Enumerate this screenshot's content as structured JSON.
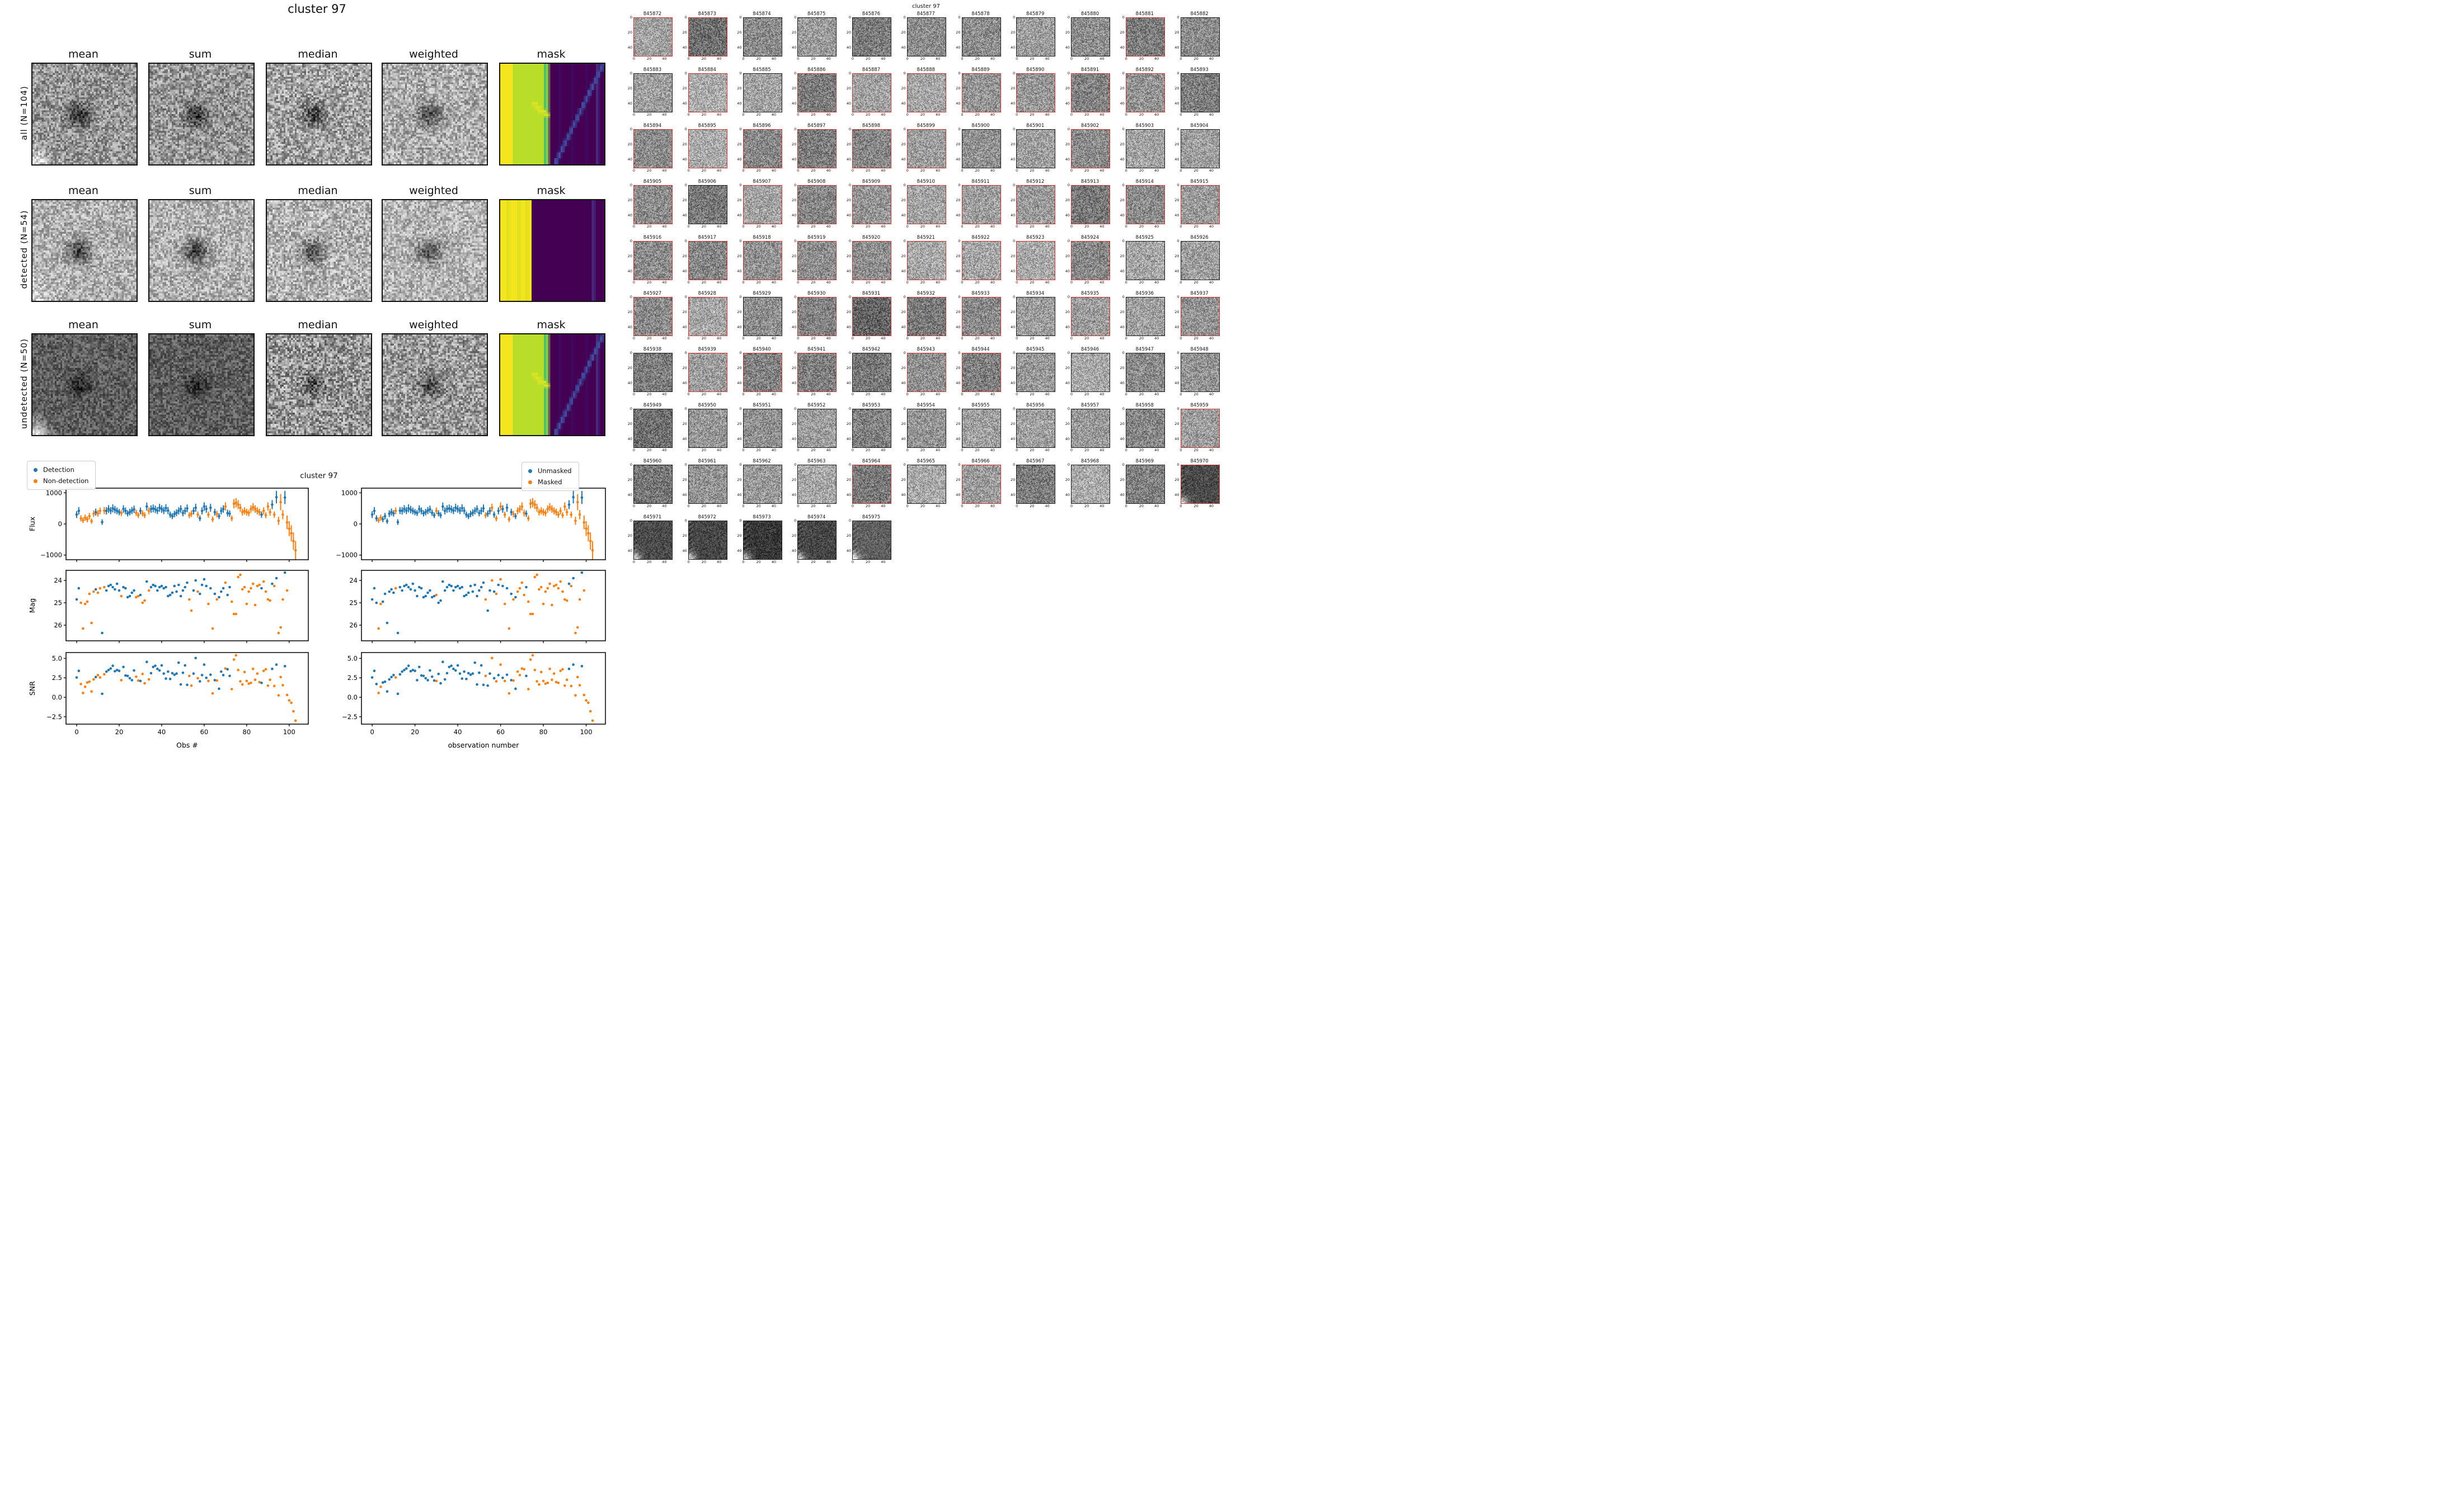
{
  "mosaic": {
    "title": "cluster 97",
    "columns": [
      "mean",
      "sum",
      "median",
      "weighted",
      "mask"
    ],
    "rows": [
      {
        "label": "all (N=104)",
        "mask_type": "wide"
      },
      {
        "label": "detected (N=54)",
        "mask_type": "narrow"
      },
      {
        "label": "undetected (N=50)",
        "mask_type": "wide"
      }
    ]
  },
  "plots": {
    "suptitle": "cluster 97",
    "ylabels": [
      "Flux",
      "Mag",
      "SNR"
    ],
    "left": {
      "legend": [
        "Detection",
        "Non-detection"
      ],
      "xlabel": "Obs #"
    },
    "right": {
      "legend": [
        "Unmasked",
        "Masked"
      ],
      "xlabel": "observation number"
    },
    "flux_ticks": [
      1000,
      0,
      -1000
    ],
    "mag_ticks": [
      24,
      25,
      26
    ],
    "snr_ticks": [
      5.0,
      2.5,
      0.0,
      -2.5
    ],
    "x_ticks": [
      0,
      20,
      40,
      60,
      80,
      100
    ]
  },
  "thumb_grid": {
    "suptitle": "cluster 97",
    "first_id": 845872,
    "count": 104,
    "cols": 11,
    "axis_ticks": [
      0,
      20,
      40
    ]
  },
  "colors": {
    "detection_blue": "#1f77b4",
    "nondetection_orange": "#ff7f0e",
    "mask_yellow": "#f4e61e",
    "mask_yellow2": "#e3e01c",
    "mask_yellowgreen": "#b8de29",
    "mask_green1": "#4ac16d",
    "mask_green2": "#7fd34f",
    "mask_purple": "#440154",
    "mask_purple2": "#472a7c",
    "mask_blue": "#3f4f9e",
    "thumb_border_red": "#c83232",
    "thumb_border_black": "#1a1a1a",
    "spine": "#111111"
  },
  "chart_data": {
    "type": "scatter",
    "description": "104 observations of cluster 97; same data plotted in two columns: left colored by Detection/Non-detection, right colored by Unmasked/Masked. Rows: Flux (with error bars), Mag, SNR vs observation number 0-103.",
    "x_range": [
      0,
      103
    ],
    "panels": [
      {
        "name": "Flux",
        "ylim": [
          -1150,
          1150
        ],
        "ticks": [
          1000,
          0,
          -1000
        ],
        "errorbars": true
      },
      {
        "name": "Mag",
        "ylim": [
          23.55,
          26.7
        ],
        "ticks": [
          24,
          25,
          26
        ],
        "errorbars": false
      },
      {
        "name": "SNR",
        "ylim": [
          -3.45,
          5.75
        ],
        "ticks": [
          5.0,
          2.5,
          0.0,
          -2.5
        ],
        "errorbars": false
      }
    ],
    "observations": {
      "first_id": 845872,
      "flux": [
        300,
        420,
        180,
        120,
        200,
        150,
        250,
        90,
        330,
        380,
        340,
        420,
        60,
        430,
        420,
        480,
        430,
        500,
        460,
        420,
        380,
        350,
        480,
        420,
        340,
        380,
        430,
        470,
        360,
        280,
        420,
        340,
        280,
        560,
        420,
        480,
        500,
        470,
        430,
        520,
        480,
        430,
        510,
        430,
        300,
        250,
        320,
        360,
        420,
        480,
        350,
        420,
        500,
        280,
        330,
        420,
        520,
        300,
        180,
        420,
        560,
        480,
        300,
        520,
        150,
        380,
        320,
        250,
        420,
        480,
        560,
        350,
        330,
        180,
        650,
        680,
        620,
        520,
        380,
        420,
        380,
        350,
        480,
        540,
        480,
        420,
        380,
        300,
        420,
        280,
        560,
        380,
        620,
        300,
        860,
        100,
        700,
        300,
        850,
        50,
        -150,
        -300,
        -550,
        -850
      ],
      "flux_err": [
        110,
        120,
        100,
        90,
        100,
        95,
        105,
        85,
        110,
        115,
        105,
        110,
        90,
        115,
        120,
        125,
        115,
        130,
        120,
        110,
        100,
        95,
        120,
        110,
        100,
        105,
        115,
        120,
        100,
        90,
        110,
        100,
        95,
        130,
        115,
        120,
        125,
        120,
        115,
        130,
        120,
        115,
        125,
        115,
        100,
        95,
        105,
        110,
        115,
        120,
        105,
        115,
        125,
        95,
        105,
        115,
        130,
        100,
        90,
        115,
        135,
        120,
        100,
        130,
        90,
        110,
        105,
        95,
        115,
        120,
        135,
        110,
        105,
        90,
        150,
        150,
        145,
        130,
        110,
        115,
        110,
        105,
        120,
        130,
        120,
        115,
        110,
        100,
        115,
        95,
        135,
        115,
        145,
        100,
        200,
        130,
        260,
        150,
        210,
        220,
        240,
        260,
        280,
        300
      ],
      "mag": [
        24.85,
        24.35,
        25.0,
        26.15,
        25.05,
        24.95,
        24.6,
        25.9,
        24.5,
        24.4,
        24.55,
        24.35,
        26.35,
        24.3,
        24.45,
        24.25,
        24.2,
        24.3,
        24.4,
        24.15,
        24.45,
        24.7,
        24.3,
        24.35,
        24.75,
        24.7,
        24.55,
        24.45,
        24.75,
        24.7,
        24.65,
        25.0,
        24.9,
        24.05,
        24.45,
        24.3,
        24.2,
        24.25,
        24.45,
        24.3,
        24.25,
        24.35,
        24.3,
        24.7,
        24.65,
        24.55,
        24.25,
        24.5,
        24.2,
        24.7,
        24.45,
        24.3,
        24.1,
        24.85,
        25.35,
        24.45,
        24.0,
        24.5,
        24.6,
        24.2,
        23.95,
        24.25,
        25.05,
        24.35,
        26.15,
        24.6,
        24.85,
        24.75,
        24.5,
        24.35,
        24.1,
        24.65,
        24.3,
        24.95,
        25.5,
        25.5,
        23.85,
        23.75,
        24.4,
        24.3,
        25.05,
        24.5,
        24.35,
        24.15,
        25.1,
        24.25,
        24.2,
        24.35,
        24.05,
        24.5,
        24.85,
        24.9,
        24.15,
        24.25,
        23.9,
        26.35,
        26.1,
        24.85,
        23.65,
        24.45,
        null,
        null,
        null,
        null
      ],
      "snr": [
        2.55,
        3.4,
        1.7,
        0.55,
        1.35,
        1.9,
        2.0,
        0.75,
        2.3,
        2.6,
        2.85,
        2.55,
        0.45,
        2.95,
        3.3,
        3.5,
        3.7,
        4.05,
        3.35,
        3.5,
        3.4,
        2.2,
        3.9,
        2.8,
        2.75,
        2.45,
        2.2,
        3.45,
        2.65,
        2.15,
        2.1,
        3.0,
        1.8,
        4.55,
        2.3,
        3.1,
        3.9,
        4.05,
        3.65,
        3.45,
        4.1,
        3.05,
        2.4,
        3.3,
        2.35,
        3.1,
        2.9,
        3.05,
        4.45,
        1.65,
        3.15,
        4.1,
        1.6,
        2.75,
        1.5,
        3.05,
        5.05,
        2.45,
        2.05,
        2.85,
        4.2,
        2.5,
        2.1,
        2.9,
        0.5,
        2.2,
        2.15,
        1.1,
        3.3,
        2.85,
        3.7,
        3.6,
        2.75,
        1.05,
        4.85,
        5.4,
        3.5,
        2.05,
        1.65,
        3.25,
        2.1,
        1.75,
        1.85,
        3.65,
        2.25,
        3.05,
        1.95,
        1.85,
        3.4,
        3.6,
        1.5,
        2.25,
        3.65,
        1.45,
        4.2,
        0.25,
        2.6,
        1.55,
        4.0,
        0.3,
        -0.4,
        -0.7,
        -1.8,
        -3.0
      ],
      "detected": [
        1,
        1,
        0,
        0,
        0,
        0,
        0,
        0,
        0,
        1,
        0,
        0,
        1,
        0,
        1,
        1,
        1,
        1,
        1,
        1,
        1,
        0,
        1,
        1,
        1,
        1,
        1,
        1,
        0,
        0,
        1,
        0,
        0,
        1,
        0,
        1,
        1,
        1,
        1,
        1,
        1,
        1,
        1,
        1,
        1,
        1,
        1,
        1,
        1,
        1,
        1,
        1,
        1,
        0,
        0,
        1,
        1,
        0,
        1,
        1,
        1,
        1,
        0,
        1,
        0,
        1,
        0,
        1,
        1,
        1,
        0,
        1,
        1,
        0,
        0,
        0,
        0,
        0,
        0,
        0,
        0,
        0,
        0,
        0,
        0,
        0,
        0,
        1,
        0,
        0,
        0,
        0,
        1,
        0,
        1,
        0,
        0,
        0,
        1,
        0,
        0,
        0,
        0,
        0
      ],
      "masked": [
        0,
        0,
        0,
        1,
        1,
        0,
        0,
        0,
        0,
        0,
        0,
        1,
        0,
        0,
        0,
        0,
        0,
        0,
        0,
        0,
        0,
        0,
        0,
        0,
        0,
        0,
        0,
        0,
        0,
        0,
        1,
        0,
        0,
        0,
        0,
        0,
        0,
        0,
        0,
        0,
        0,
        0,
        0,
        0,
        0,
        0,
        0,
        0,
        0,
        0,
        0,
        0,
        0,
        1,
        0,
        0,
        1,
        0,
        1,
        0,
        1,
        0,
        1,
        0,
        1,
        0,
        1,
        0,
        1,
        1,
        1,
        1,
        0,
        1,
        1,
        1,
        1,
        1,
        1,
        1,
        1,
        1,
        1,
        1,
        1,
        1,
        1,
        1,
        1,
        1,
        1,
        1,
        0,
        1,
        0,
        1,
        1,
        1,
        0,
        1,
        1,
        1,
        1,
        1
      ]
    }
  }
}
